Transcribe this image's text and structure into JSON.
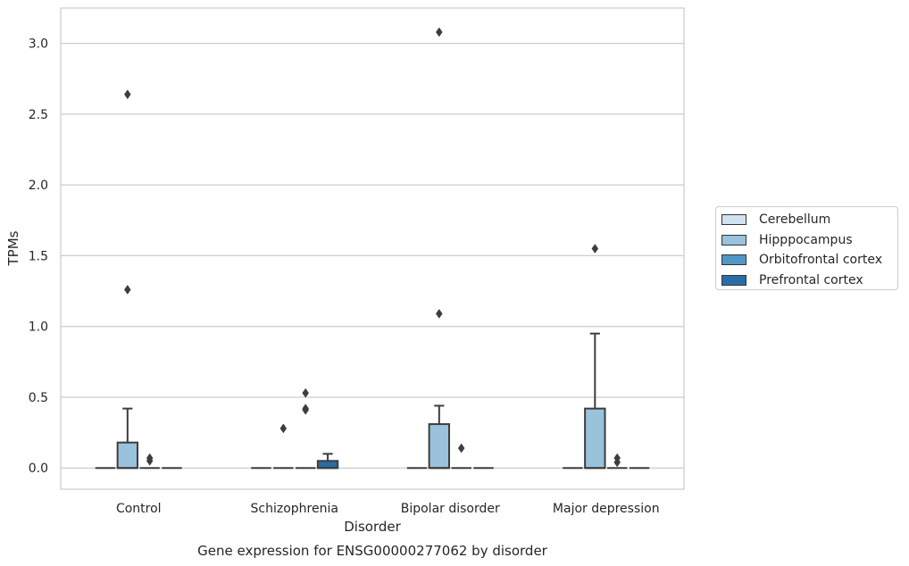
{
  "chart_data": {
    "type": "boxplot",
    "title": "Gene expression for ENSG00000277062 by disorder",
    "xlabel": "Disorder",
    "ylabel": "TPMs",
    "ylim": [
      -0.15,
      3.25
    ],
    "yticks": [
      "0.0",
      "0.5",
      "1.0",
      "1.5",
      "2.0",
      "2.5",
      "3.0"
    ],
    "grid": "horizontal",
    "legend_placement": "center-right",
    "categories": [
      "Control",
      "Schizophrenia",
      "Bipolar disorder",
      "Major depression"
    ],
    "series": [
      {
        "name": "Cerebellum",
        "color": "#d1e2f1",
        "boxes": [
          {
            "q1": 0,
            "median": 0,
            "q3": 0,
            "whisker_low": 0,
            "whisker_high": 0,
            "outliers": []
          },
          {
            "q1": 0,
            "median": 0,
            "q3": 0,
            "whisker_low": 0,
            "whisker_high": 0,
            "outliers": []
          },
          {
            "q1": 0,
            "median": 0,
            "q3": 0,
            "whisker_low": 0,
            "whisker_high": 0,
            "outliers": []
          },
          {
            "q1": 0,
            "median": 0,
            "q3": 0,
            "whisker_low": 0,
            "whisker_high": 0,
            "outliers": []
          }
        ]
      },
      {
        "name": "Hipppocampus",
        "color": "#9ac2dc",
        "boxes": [
          {
            "q1": 0,
            "median": 0,
            "q3": 0.18,
            "whisker_low": 0,
            "whisker_high": 0.42,
            "outliers": [
              1.26,
              2.64
            ]
          },
          {
            "q1": 0,
            "median": 0,
            "q3": 0,
            "whisker_low": 0,
            "whisker_high": 0,
            "outliers": [
              0.28
            ]
          },
          {
            "q1": 0,
            "median": 0,
            "q3": 0.31,
            "whisker_low": 0,
            "whisker_high": 0.44,
            "outliers": [
              1.09,
              3.08
            ]
          },
          {
            "q1": 0,
            "median": 0,
            "q3": 0.42,
            "whisker_low": 0,
            "whisker_high": 0.95,
            "outliers": [
              1.55
            ]
          }
        ]
      },
      {
        "name": "Orbitofrontal cortex",
        "color": "#5196c6",
        "boxes": [
          {
            "q1": 0,
            "median": 0,
            "q3": 0,
            "whisker_low": 0,
            "whisker_high": 0,
            "outliers": [
              0.05,
              0.07
            ]
          },
          {
            "q1": 0,
            "median": 0,
            "q3": 0,
            "whisker_low": 0,
            "whisker_high": 0,
            "outliers": [
              0.41,
              0.42,
              0.53
            ]
          },
          {
            "q1": 0,
            "median": 0,
            "q3": 0,
            "whisker_low": 0,
            "whisker_high": 0,
            "outliers": [
              0.14
            ]
          },
          {
            "q1": 0,
            "median": 0,
            "q3": 0,
            "whisker_low": 0,
            "whisker_high": 0,
            "outliers": [
              0.04,
              0.07
            ]
          }
        ]
      },
      {
        "name": "Prefrontal cortex",
        "color": "#2a6ca8",
        "boxes": [
          {
            "q1": 0,
            "median": 0,
            "q3": 0,
            "whisker_low": 0,
            "whisker_high": 0,
            "outliers": []
          },
          {
            "q1": 0,
            "median": 0,
            "q3": 0.05,
            "whisker_low": 0,
            "whisker_high": 0.1,
            "outliers": []
          },
          {
            "q1": 0,
            "median": 0,
            "q3": 0,
            "whisker_low": 0,
            "whisker_high": 0,
            "outliers": []
          },
          {
            "q1": 0,
            "median": 0,
            "q3": 0,
            "whisker_low": 0,
            "whisker_high": 0,
            "outliers": []
          }
        ]
      }
    ]
  }
}
